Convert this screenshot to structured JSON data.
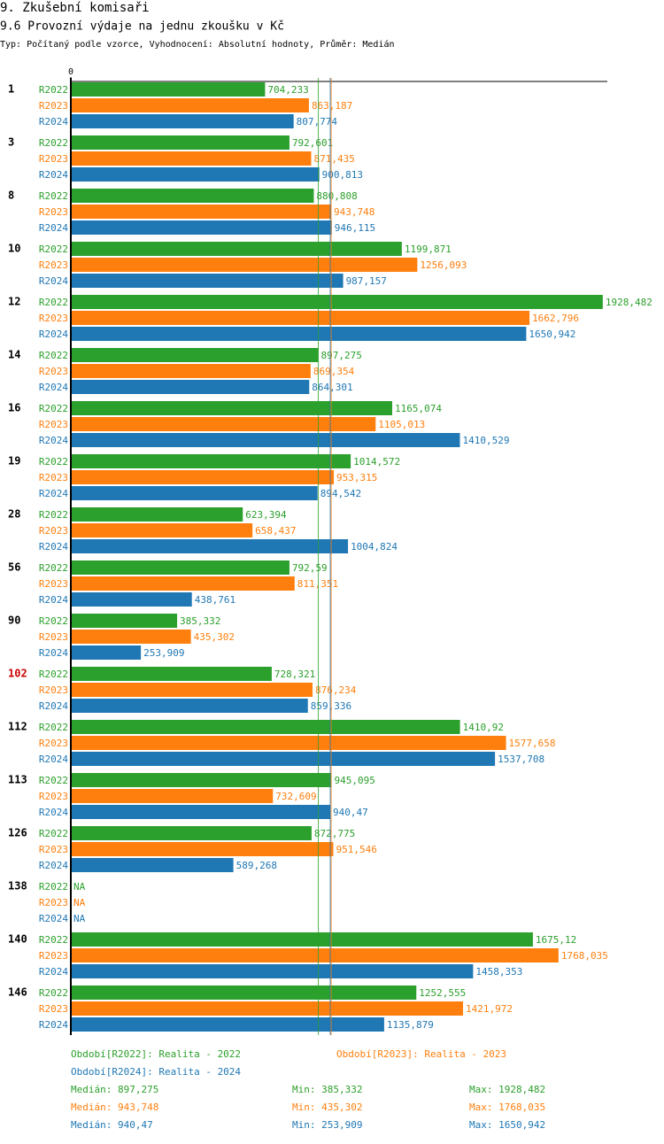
{
  "chart_data": {
    "type": "bar",
    "orientation": "horizontal",
    "title": "9. Zkušební komisaři",
    "subtitle": "9.6 Provozní výdaje na jednu zkoušku v Kč",
    "note": "Typ: Počítaný podle vzorce, Vyhodnocení: Absolutní hodnoty, Průměr: Medián",
    "categories": [
      "1",
      "3",
      "8",
      "10",
      "12",
      "14",
      "16",
      "19",
      "28",
      "56",
      "90",
      "102",
      "112",
      "113",
      "126",
      "138",
      "140",
      "146"
    ],
    "highlight": {
      "category_index": 11,
      "color": "#cc0000"
    },
    "xlim": [
      0,
      1945
    ],
    "xticks": [
      0
    ],
    "median_lines": true,
    "series": [
      {
        "name": "R2022",
        "color": "#2ca02c",
        "legend": "Období[R2022]: Realita - 2022",
        "values": [
          704.233,
          792.601,
          880.808,
          1199.871,
          1928.482,
          897.275,
          1165.074,
          1014.572,
          623.394,
          792.59,
          385.332,
          728.321,
          1410.92,
          945.095,
          872.775,
          null,
          1675.12,
          1252.555
        ],
        "value_labels": [
          "704,233",
          "792,601",
          "880,808",
          "1199,871",
          "1928,482",
          "897,275",
          "1165,074",
          "1014,572",
          "623,394",
          "792,59",
          "385,332",
          "728,321",
          "1410,92",
          "945,095",
          "872,775",
          "NA",
          "1675,12",
          "1252,555"
        ],
        "median": {
          "value": 897.275,
          "label": "Medián: 897,275"
        },
        "min": {
          "value": 385.332,
          "label": "Min: 385,332"
        },
        "max": {
          "value": 1928.482,
          "label": "Max: 1928,482"
        }
      },
      {
        "name": "R2023",
        "color": "#ff7f0e",
        "legend": "Období[R2023]: Realita - 2023",
        "values": [
          863.187,
          871.435,
          943.748,
          1256.093,
          1662.796,
          869.354,
          1105.013,
          953.315,
          658.437,
          811.351,
          435.302,
          876.234,
          1577.658,
          732.609,
          951.546,
          null,
          1768.035,
          1421.972
        ],
        "value_labels": [
          "863,187",
          "871,435",
          "943,748",
          "1256,093",
          "1662,796",
          "869,354",
          "1105,013",
          "953,315",
          "658,437",
          "811,351",
          "435,302",
          "876,234",
          "1577,658",
          "732,609",
          "951,546",
          "NA",
          "1768,035",
          "1421,972"
        ],
        "median": {
          "value": 943.748,
          "label": "Medián: 943,748"
        },
        "min": {
          "value": 435.302,
          "label": "Min: 435,302"
        },
        "max": {
          "value": 1768.035,
          "label": "Max: 1768,035"
        }
      },
      {
        "name": "R2024",
        "color": "#1f77b4",
        "legend": "Období[R2024]: Realita - 2024",
        "values": [
          807.774,
          900.813,
          946.115,
          987.157,
          1650.942,
          864.301,
          1410.529,
          894.542,
          1004.824,
          438.761,
          253.909,
          859.336,
          1537.708,
          940.47,
          589.268,
          null,
          1458.353,
          1135.879
        ],
        "value_labels": [
          "807,774",
          "900,813",
          "946,115",
          "987,157",
          "1650,942",
          "864,301",
          "1410,529",
          "894,542",
          "1004,824",
          "438,761",
          "253,909",
          "859,336",
          "1537,708",
          "940,47",
          "589,268",
          "NA",
          "1458,353",
          "1135,879"
        ],
        "median": {
          "value": 940.47,
          "label": "Medián: 940,47"
        },
        "min": {
          "value": 253.909,
          "label": "Min: 253,909"
        },
        "max": {
          "value": 1650.942,
          "label": "Max: 1650,942"
        }
      }
    ]
  }
}
